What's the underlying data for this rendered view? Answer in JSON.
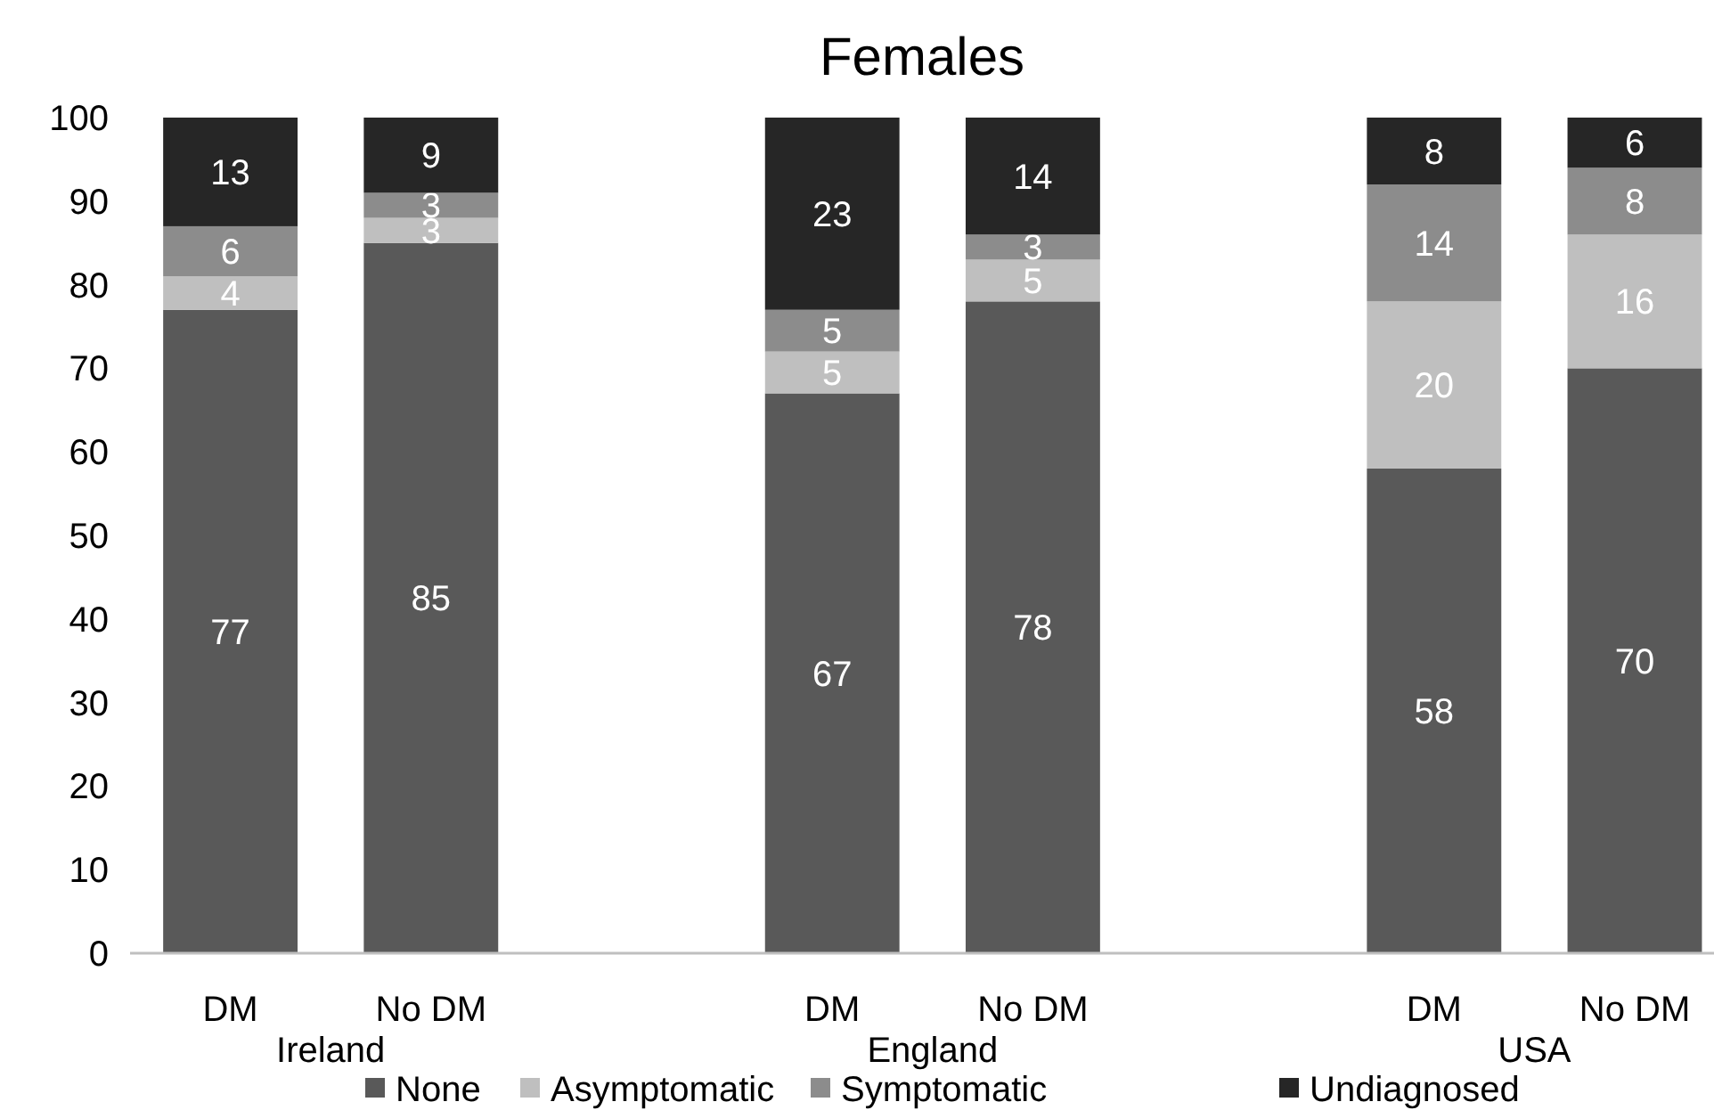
{
  "chart_data": {
    "type": "bar",
    "title": "Females",
    "stacked": true,
    "data_labels": true,
    "legend": "bottom",
    "grid": false,
    "categories": [
      "DM",
      "No DM",
      null,
      "DM",
      "No DM",
      null,
      "DM",
      "No DM"
    ],
    "annotations": [
      "Ireland",
      "England",
      "USA"
    ],
    "ylim": [
      0,
      100
    ],
    "yticks": [
      0,
      10,
      20,
      30,
      40,
      50,
      60,
      70,
      80,
      90,
      100
    ],
    "series": [
      {
        "name": "None",
        "color": "#595959",
        "values": [
          77,
          85,
          null,
          67,
          78,
          null,
          58,
          70
        ]
      },
      {
        "name": "Asymptomatic",
        "color": "#bfbfbf",
        "values": [
          4,
          3,
          null,
          5,
          5,
          null,
          20,
          16
        ]
      },
      {
        "name": "Symptomatic",
        "color": "#8c8c8c",
        "values": [
          6,
          3,
          null,
          5,
          3,
          null,
          14,
          8
        ]
      },
      {
        "name": "Undiagnosed",
        "color": "#262626",
        "values": [
          13,
          9,
          null,
          23,
          14,
          null,
          8,
          6
        ]
      }
    ]
  }
}
